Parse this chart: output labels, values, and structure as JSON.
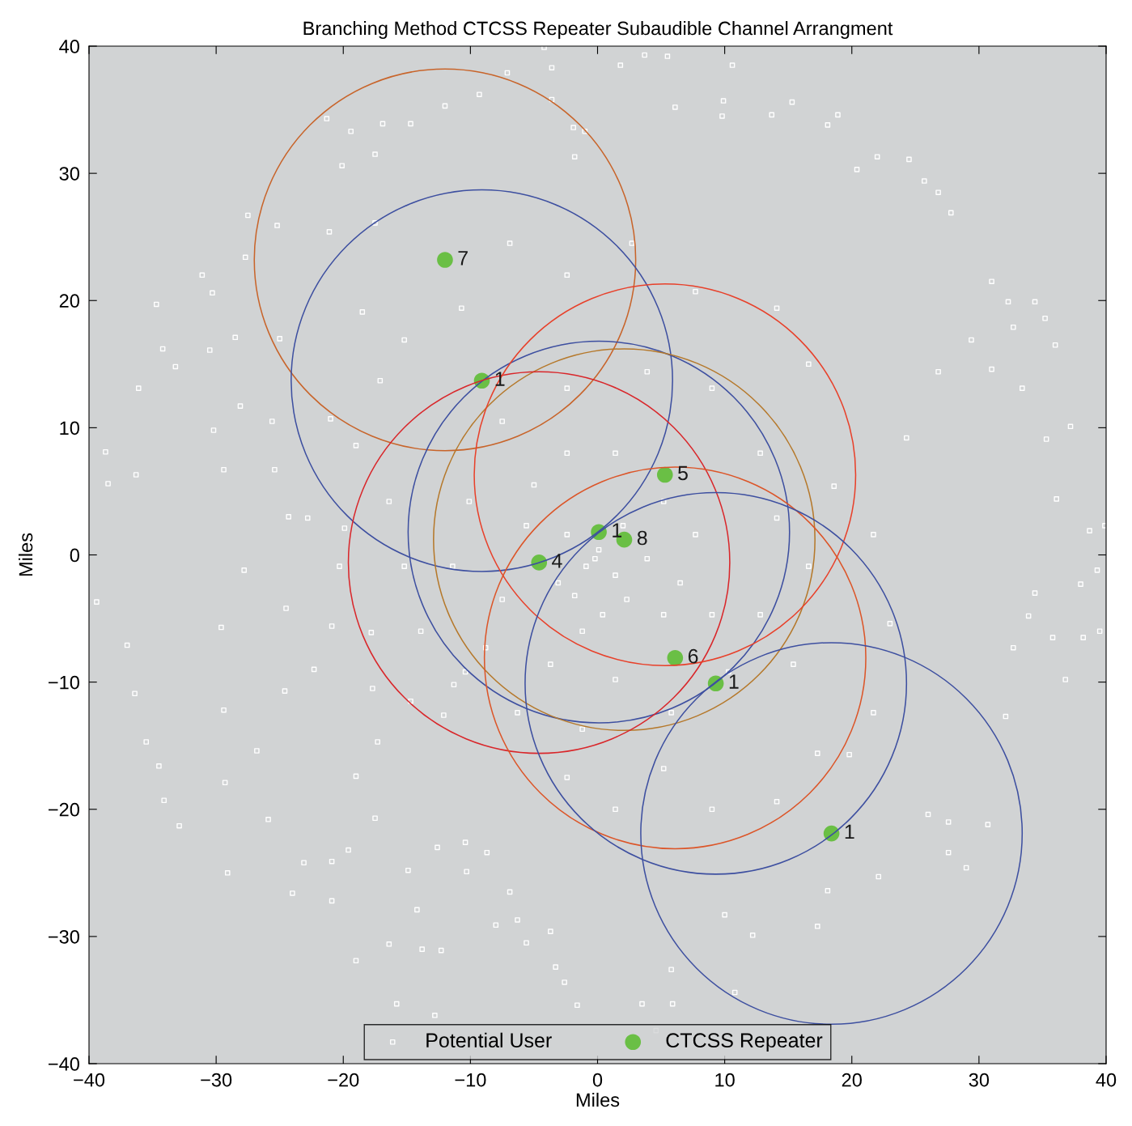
{
  "chart_data": {
    "type": "scatter",
    "title": "Branching Method CTCSS Repeater Subaudible Channel Arrangment",
    "xlabel": "Miles",
    "ylabel": "Miles",
    "xlim": [
      -40,
      40
    ],
    "ylim": [
      -40,
      40
    ],
    "xticks": [
      -40,
      -30,
      -20,
      -10,
      0,
      10,
      20,
      30,
      40
    ],
    "yticks": [
      -40,
      -30,
      -20,
      -10,
      0,
      10,
      20,
      30,
      40
    ],
    "grid": false,
    "legend": "bottom",
    "series": [
      {
        "name": "Potential User",
        "marker": "square",
        "color": "#ffffff",
        "x": [
          -38.7,
          -38.5,
          -39.4,
          -37,
          -36.4,
          -35.5,
          -34.5,
          -34.1,
          -32.9,
          -34.7,
          -34.2,
          -33.2,
          -36.1,
          -36.3,
          -31.1,
          -30.3,
          -30.5,
          -30.2,
          -29.4,
          -29.6,
          -29.4,
          -29.3,
          -29.1,
          -27.5,
          -27.7,
          -28.5,
          -28.1,
          -27.8,
          -26.8,
          -25.9,
          -25.2,
          -25,
          -25.6,
          -24.3,
          -24.5,
          -24.6,
          -24,
          -23.1,
          -22.3,
          -21.3,
          -21.1,
          -21,
          -20.9,
          -20.9,
          -20.9,
          -20.1,
          -19.9,
          -19.6,
          -19.4,
          -18.5,
          -17.8,
          -19,
          -17.5,
          -17.5,
          -16.4,
          -15.8,
          -16.9,
          -14.7,
          -14.2,
          -13.8,
          -12.3,
          -12.8,
          -12,
          -9.3,
          -7.1,
          -4.2,
          -3.6,
          -3.6,
          -1.9,
          -1,
          -1.8,
          1.8,
          3.7,
          5.5,
          6.1,
          9.8,
          10.6,
          9.9,
          13.7,
          15.3,
          18.1,
          18.9,
          20.4,
          22,
          24.5,
          25.7,
          26.8,
          27.8,
          31,
          32.3,
          34.4,
          35.2,
          36,
          32.7,
          29.4,
          31,
          33.4,
          35.3,
          37.2,
          36.1,
          38.7,
          39.9,
          38,
          39.3,
          39.5,
          38.2,
          36.8,
          35.8,
          33.9,
          34.4,
          32.7,
          32.1,
          30.7,
          29,
          27.6,
          26,
          27.6,
          19.8,
          22.1,
          18.1,
          17.3,
          12.2,
          10,
          10.8,
          5.8,
          5.9,
          3.5,
          4.6,
          -1.6,
          -2.6,
          -3.3,
          -3.7,
          -6.3,
          -8,
          -5.6,
          -6.9,
          -10.3,
          -8.7,
          -10.4,
          -12.6,
          -14.9,
          -17.5,
          -19,
          -17.3,
          -14.7,
          -12.1,
          -11.3,
          -10.4,
          0.1,
          -0.2,
          -0.9,
          1.4,
          2.3,
          -1.8,
          -2.4,
          2,
          3.9,
          -3.1,
          0.4,
          -1.2,
          5.2,
          6.5,
          -5.6,
          -5,
          -2.4,
          1.4,
          5.2,
          7.7,
          9,
          -7.5,
          -8.8,
          -3.7,
          1.4,
          5.8,
          -1.2,
          -6.3,
          -11.4,
          -10.1,
          -7.5,
          -2.4,
          3.9,
          9,
          12.8,
          14.1,
          12.8,
          10.3,
          15.4,
          16.6,
          18.6,
          16.6,
          14.1,
          7.7,
          2.7,
          -2.4,
          -6.9,
          -10.7,
          -15.2,
          -17.1,
          -19,
          -16.4,
          -15.2,
          -20.3,
          -22.8,
          -25.4,
          -13.9,
          -17.7,
          5.2,
          1.4,
          -2.4,
          9,
          14.1,
          17.3,
          21.7,
          23,
          21.7,
          24.3,
          26.8
        ],
        "values": [
          8.1,
          5.6,
          -3.7,
          -7.1,
          -10.9,
          -14.7,
          -16.6,
          -19.3,
          -21.3,
          19.7,
          16.2,
          14.8,
          13.1,
          6.3,
          22,
          20.6,
          16.1,
          9.8,
          6.7,
          -5.7,
          -12.2,
          -17.9,
          -25,
          26.7,
          23.4,
          17.1,
          11.7,
          -1.2,
          -15.4,
          -20.8,
          25.9,
          17,
          10.5,
          3,
          -4.2,
          -10.7,
          -26.6,
          -24.2,
          -9,
          34.3,
          25.4,
          10.7,
          -5.6,
          -24.1,
          -27.2,
          30.6,
          2.1,
          -23.2,
          33.3,
          19.1,
          -6.1,
          -31.9,
          31.5,
          26.1,
          -30.6,
          -35.3,
          33.9,
          33.9,
          -27.9,
          -31,
          -31.1,
          -36.2,
          35.3,
          36.2,
          37.9,
          39.9,
          38.3,
          35.8,
          33.6,
          33.3,
          31.3,
          38.5,
          39.3,
          39.2,
          35.2,
          34.5,
          38.5,
          35.7,
          34.6,
          35.6,
          33.8,
          34.6,
          30.3,
          31.3,
          31.1,
          29.4,
          28.5,
          26.9,
          21.5,
          19.9,
          19.9,
          18.6,
          16.5,
          17.9,
          16.9,
          14.6,
          13.1,
          9.1,
          10.1,
          4.4,
          1.9,
          2.3,
          -2.3,
          -1.2,
          -6,
          -6.5,
          -9.8,
          -6.5,
          -4.8,
          -3,
          -7.3,
          -12.7,
          -21.2,
          -24.6,
          -23.4,
          -20.4,
          -21,
          -15.7,
          -25.3,
          -26.4,
          -29.2,
          -29.9,
          -28.3,
          -34.4,
          -32.6,
          -35.3,
          -35.3,
          -37.4,
          -35.4,
          -33.6,
          -32.4,
          -29.6,
          -28.7,
          -29.1,
          -30.5,
          -26.5,
          -24.9,
          -23.4,
          -22.6,
          -23,
          -24.8,
          -20.7,
          -17.4,
          -14.7,
          -11.5,
          -12.6,
          -10.2,
          -9.2,
          0.4,
          -0.3,
          -0.9,
          -1.6,
          -3.5,
          -3.2,
          1.6,
          2.3,
          -0.3,
          -2.2,
          -4.7,
          -6,
          -4.7,
          -2.2,
          2.3,
          5.5,
          8,
          8,
          4.2,
          1.6,
          -4.7,
          -3.5,
          -7.3,
          -8.6,
          -9.8,
          -12.4,
          -13.7,
          -12.4,
          -0.9,
          4.2,
          10.5,
          13.1,
          14.4,
          13.1,
          8,
          2.9,
          -4.7,
          -9.2,
          -8.6,
          -0.9,
          5.4,
          15,
          19.4,
          20.7,
          24.5,
          22,
          24.5,
          19.4,
          16.9,
          13.7,
          8.6,
          4.2,
          -0.9,
          -0.9,
          2.9,
          6.7,
          -6,
          -10.5,
          -16.8,
          -20,
          -17.5,
          -20,
          -19.4,
          -15.6,
          -12.4,
          -5.4,
          1.6,
          9.2,
          14.4
        ]
      },
      {
        "name": "CTCSS Repeater",
        "marker": "circle",
        "color": "#6abf45",
        "x": [
          -12,
          -9.1,
          0.1,
          2.1,
          -4.6,
          5.3,
          6.1,
          9.3,
          18.4
        ],
        "values": [
          23.2,
          13.7,
          1.8,
          1.2,
          -0.6,
          6.3,
          -8.1,
          -10.1,
          -21.9
        ]
      }
    ],
    "annotations": [
      {
        "text": "7",
        "x": -12,
        "y": 23.2
      },
      {
        "text": "1",
        "x": -9.1,
        "y": 13.7
      },
      {
        "text": "1",
        "x": 0.1,
        "y": 1.8
      },
      {
        "text": "8",
        "x": 2.1,
        "y": 1.2
      },
      {
        "text": "4",
        "x": -4.6,
        "y": -0.6
      },
      {
        "text": "5",
        "x": 5.3,
        "y": 6.3
      },
      {
        "text": "6",
        "x": 6.1,
        "y": -8.1
      },
      {
        "text": "1",
        "x": 9.3,
        "y": -10.1
      },
      {
        "text": "1",
        "x": 18.4,
        "y": -21.9
      }
    ]
  }
}
